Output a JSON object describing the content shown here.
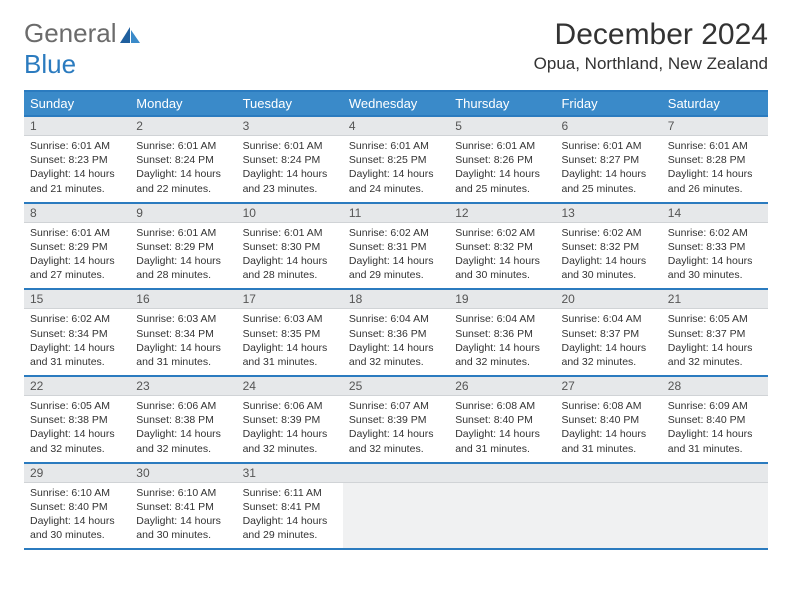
{
  "logo": {
    "text1": "General",
    "text2": "Blue"
  },
  "title": "December 2024",
  "location": "Opua, Northland, New Zealand",
  "colors": {
    "header_bg": "#3a8ac9",
    "border": "#2b7bbf",
    "daynum_bg": "#e6e8ea",
    "empty_bg": "#f0f1f2",
    "text": "#333333",
    "logo_gray": "#6b6b6b",
    "logo_blue": "#2b7bbf"
  },
  "typography": {
    "title_fontsize": 30,
    "location_fontsize": 17,
    "header_fontsize": 13,
    "daynum_fontsize": 12,
    "cell_fontsize": 10.5
  },
  "day_headers": [
    "Sunday",
    "Monday",
    "Tuesday",
    "Wednesday",
    "Thursday",
    "Friday",
    "Saturday"
  ],
  "weeks": [
    [
      {
        "n": "1",
        "sr": "6:01 AM",
        "ss": "8:23 PM",
        "dl": "14 hours and 21 minutes."
      },
      {
        "n": "2",
        "sr": "6:01 AM",
        "ss": "8:24 PM",
        "dl": "14 hours and 22 minutes."
      },
      {
        "n": "3",
        "sr": "6:01 AM",
        "ss": "8:24 PM",
        "dl": "14 hours and 23 minutes."
      },
      {
        "n": "4",
        "sr": "6:01 AM",
        "ss": "8:25 PM",
        "dl": "14 hours and 24 minutes."
      },
      {
        "n": "5",
        "sr": "6:01 AM",
        "ss": "8:26 PM",
        "dl": "14 hours and 25 minutes."
      },
      {
        "n": "6",
        "sr": "6:01 AM",
        "ss": "8:27 PM",
        "dl": "14 hours and 25 minutes."
      },
      {
        "n": "7",
        "sr": "6:01 AM",
        "ss": "8:28 PM",
        "dl": "14 hours and 26 minutes."
      }
    ],
    [
      {
        "n": "8",
        "sr": "6:01 AM",
        "ss": "8:29 PM",
        "dl": "14 hours and 27 minutes."
      },
      {
        "n": "9",
        "sr": "6:01 AM",
        "ss": "8:29 PM",
        "dl": "14 hours and 28 minutes."
      },
      {
        "n": "10",
        "sr": "6:01 AM",
        "ss": "8:30 PM",
        "dl": "14 hours and 28 minutes."
      },
      {
        "n": "11",
        "sr": "6:02 AM",
        "ss": "8:31 PM",
        "dl": "14 hours and 29 minutes."
      },
      {
        "n": "12",
        "sr": "6:02 AM",
        "ss": "8:32 PM",
        "dl": "14 hours and 30 minutes."
      },
      {
        "n": "13",
        "sr": "6:02 AM",
        "ss": "8:32 PM",
        "dl": "14 hours and 30 minutes."
      },
      {
        "n": "14",
        "sr": "6:02 AM",
        "ss": "8:33 PM",
        "dl": "14 hours and 30 minutes."
      }
    ],
    [
      {
        "n": "15",
        "sr": "6:02 AM",
        "ss": "8:34 PM",
        "dl": "14 hours and 31 minutes."
      },
      {
        "n": "16",
        "sr": "6:03 AM",
        "ss": "8:34 PM",
        "dl": "14 hours and 31 minutes."
      },
      {
        "n": "17",
        "sr": "6:03 AM",
        "ss": "8:35 PM",
        "dl": "14 hours and 31 minutes."
      },
      {
        "n": "18",
        "sr": "6:04 AM",
        "ss": "8:36 PM",
        "dl": "14 hours and 32 minutes."
      },
      {
        "n": "19",
        "sr": "6:04 AM",
        "ss": "8:36 PM",
        "dl": "14 hours and 32 minutes."
      },
      {
        "n": "20",
        "sr": "6:04 AM",
        "ss": "8:37 PM",
        "dl": "14 hours and 32 minutes."
      },
      {
        "n": "21",
        "sr": "6:05 AM",
        "ss": "8:37 PM",
        "dl": "14 hours and 32 minutes."
      }
    ],
    [
      {
        "n": "22",
        "sr": "6:05 AM",
        "ss": "8:38 PM",
        "dl": "14 hours and 32 minutes."
      },
      {
        "n": "23",
        "sr": "6:06 AM",
        "ss": "8:38 PM",
        "dl": "14 hours and 32 minutes."
      },
      {
        "n": "24",
        "sr": "6:06 AM",
        "ss": "8:39 PM",
        "dl": "14 hours and 32 minutes."
      },
      {
        "n": "25",
        "sr": "6:07 AM",
        "ss": "8:39 PM",
        "dl": "14 hours and 32 minutes."
      },
      {
        "n": "26",
        "sr": "6:08 AM",
        "ss": "8:40 PM",
        "dl": "14 hours and 31 minutes."
      },
      {
        "n": "27",
        "sr": "6:08 AM",
        "ss": "8:40 PM",
        "dl": "14 hours and 31 minutes."
      },
      {
        "n": "28",
        "sr": "6:09 AM",
        "ss": "8:40 PM",
        "dl": "14 hours and 31 minutes."
      }
    ],
    [
      {
        "n": "29",
        "sr": "6:10 AM",
        "ss": "8:40 PM",
        "dl": "14 hours and 30 minutes."
      },
      {
        "n": "30",
        "sr": "6:10 AM",
        "ss": "8:41 PM",
        "dl": "14 hours and 30 minutes."
      },
      {
        "n": "31",
        "sr": "6:11 AM",
        "ss": "8:41 PM",
        "dl": "14 hours and 29 minutes."
      },
      null,
      null,
      null,
      null
    ]
  ],
  "labels": {
    "sunrise": "Sunrise:",
    "sunset": "Sunset:",
    "daylight": "Daylight:"
  }
}
